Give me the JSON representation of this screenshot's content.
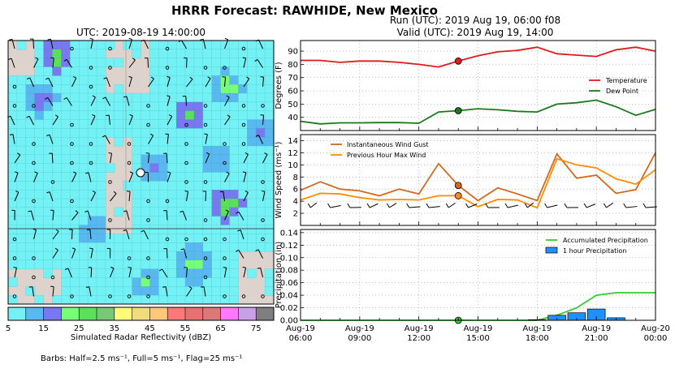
{
  "title": "HRRR Forecast: RAWHIDE, New Mexico",
  "map": {
    "title": "UTC: 2019-08-19 14:00:00",
    "colorbar_label": "Simulated Radar Reflectivity (dBZ)",
    "colorbar_ticks": [
      "5",
      "15",
      "25",
      "35",
      "45",
      "55",
      "65",
      "75"
    ],
    "colorbar_colors": [
      "#73f1f5",
      "#5ab8f0",
      "#7878f0",
      "#78ff78",
      "#5ae05a",
      "#78c878",
      "#fffa78",
      "#f0dc78",
      "#ffc878",
      "#ff7878",
      "#e87070",
      "#dc7878",
      "#ff78ff",
      "#c8a0e6",
      "#7f7f7f"
    ],
    "barbs_note": "Barbs: Half=2.5 ms⁻¹, Full=5 ms⁻¹, Flag=25 ms⁻¹"
  },
  "run_line": "Run (UTC): 2019 Aug 19, 06:00 f08",
  "valid_line": "Valid (UTC): 2019 Aug 19, 14:00",
  "x_ticks": [
    {
      "d": "Aug-19",
      "t": "06:00"
    },
    {
      "d": "Aug-19",
      "t": "09:00"
    },
    {
      "d": "Aug-19",
      "t": "12:00"
    },
    {
      "d": "Aug-19",
      "t": "15:00"
    },
    {
      "d": "Aug-19",
      "t": "18:00"
    },
    {
      "d": "Aug-19",
      "t": "21:00"
    },
    {
      "d": "Aug-20",
      "t": "00:00"
    }
  ],
  "chart_data": [
    {
      "type": "line",
      "x_hours_utc": [
        6,
        7,
        8,
        9,
        10,
        11,
        12,
        13,
        14,
        15,
        16,
        17,
        18,
        19,
        20,
        21,
        22,
        23,
        24
      ],
      "ylabel": "Degrees (F)",
      "ylim": [
        30,
        98
      ],
      "yticks": [
        40,
        50,
        60,
        70,
        80,
        90
      ],
      "valid_hour": 14,
      "series": [
        {
          "name": "Temperature",
          "color": "#e31a1c",
          "values": [
            83,
            83,
            81.5,
            82.5,
            82.5,
            81.5,
            80,
            78,
            82.5,
            86.5,
            89.5,
            90.5,
            93,
            88,
            87,
            86,
            91,
            93,
            90
          ]
        },
        {
          "name": "Dew Point",
          "color": "#1a7a1a",
          "values": [
            37,
            35,
            35.8,
            35.8,
            36,
            36,
            35.5,
            44,
            45,
            46.5,
            45.7,
            44.5,
            44,
            50,
            51,
            53,
            48,
            41.5,
            46
          ]
        }
      ],
      "legend": "right"
    },
    {
      "type": "line",
      "x_hours_utc": [
        6,
        7,
        8,
        9,
        10,
        11,
        12,
        13,
        14,
        15,
        16,
        17,
        18,
        19,
        20,
        21,
        22,
        23,
        24
      ],
      "ylabel": "Wind Speed  (ms⁻¹)",
      "ylim": [
        0,
        15
      ],
      "yticks": [
        2,
        4,
        6,
        8,
        10,
        12,
        14
      ],
      "valid_hour": 14,
      "series": [
        {
          "name": "Instantaneous Wind Gust",
          "color": "#d2691e",
          "values": [
            5.8,
            7.2,
            6,
            5.7,
            4.9,
            6,
            5.2,
            10.2,
            6.6,
            4.1,
            6.2,
            5.2,
            4.1,
            11.8,
            7.8,
            8.3,
            5.3,
            5.9,
            12
          ]
        },
        {
          "name": "Previous Hour Max Wind",
          "color": "#ff8c00",
          "values": [
            4.2,
            5.3,
            5.2,
            4.6,
            4.2,
            4.3,
            4.2,
            4.9,
            4.9,
            3.1,
            4.3,
            4.2,
            2.9,
            11,
            10,
            9.5,
            7.7,
            6.8,
            9.2
          ]
        }
      ],
      "legend": "top-left"
    },
    {
      "type": "bar",
      "x_hours_utc": [
        6,
        7,
        8,
        9,
        10,
        11,
        12,
        13,
        14,
        15,
        16,
        17,
        18,
        19,
        20,
        21,
        22,
        23,
        24
      ],
      "ylabel": "Precipitation (in)",
      "ylim": [
        0,
        0.145
      ],
      "yticks": [
        "0.00",
        "0.02",
        "0.04",
        "0.06",
        "0.08",
        "0.10",
        "0.12",
        "0.14"
      ],
      "valid_hour": 14,
      "series": [
        {
          "name": "Accumulated Precipitation",
          "type": "line",
          "color": "#32cd32",
          "values": [
            0,
            0,
            0,
            0,
            0,
            0,
            0,
            0,
            0,
            0,
            0,
            0,
            0,
            0.008,
            0.02,
            0.04,
            0.044,
            0.044,
            0.044
          ]
        },
        {
          "name": "1 hour Precipitation",
          "type": "bar",
          "color": "#1e90ff",
          "values": [
            0,
            0,
            0,
            0,
            0,
            0,
            0,
            0,
            0,
            0,
            0,
            0,
            0.001,
            0.008,
            0.012,
            0.018,
            0.004,
            0,
            0
          ]
        }
      ],
      "legend": "top-right"
    }
  ]
}
